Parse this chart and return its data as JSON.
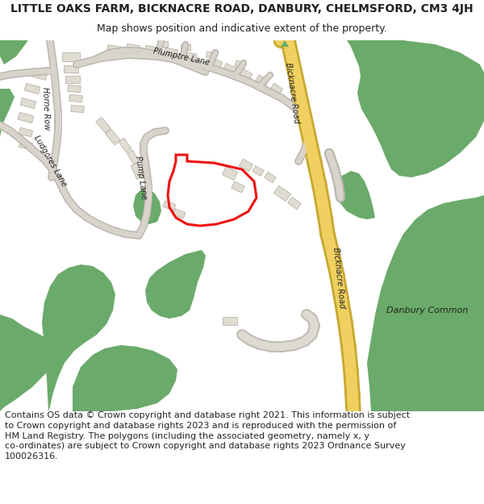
{
  "title": "LITTLE OAKS FARM, BICKNACRE ROAD, DANBURY, CHELMSFORD, CM3 4JH",
  "subtitle": "Map shows position and indicative extent of the property.",
  "footer_line1": "Contains OS data © Crown copyright and database right 2021. This information is subject",
  "footer_line2": "to Crown copyright and database rights 2023 and is reproduced with the permission of",
  "footer_line3": "HM Land Registry. The polygons (including the associated geometry, namely x, y",
  "footer_line4": "co-ordinates) are subject to Crown copyright and database rights 2023 Ordnance Survey",
  "footer_line5": "100026316.",
  "bg": "#ffffff",
  "map_bg": "#f7f5f0",
  "green": "#6aaa6a",
  "road_yellow": "#f0d060",
  "road_yellow_edge": "#c8a830",
  "road_gray": "#d8d4cc",
  "road_gray_edge": "#b8b4ac",
  "bld_fill": "#e0dcd2",
  "bld_edge": "#b8b4aa",
  "red": "#ee1111",
  "text_col": "#222222",
  "title_fs": 10,
  "sub_fs": 9,
  "footer_fs": 8,
  "label_fs": 7
}
